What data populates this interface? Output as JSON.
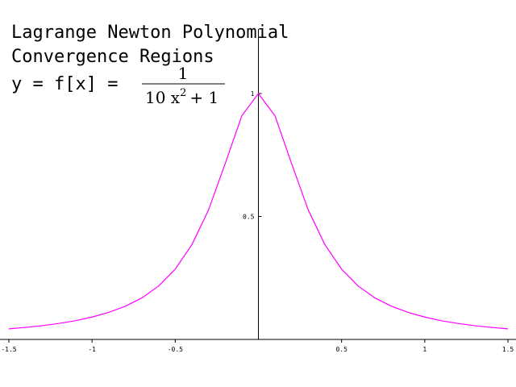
{
  "chart_data": {
    "type": "line",
    "title_lines": [
      "Lagrange Newton Polynomial",
      "Convergence Regions"
    ],
    "formula": {
      "lhs": "y = f[x] =",
      "numerator": "1",
      "denominator_base": "10 x",
      "denominator_exponent": "2",
      "denominator_tail": "+ 1"
    },
    "xlabel": "",
    "ylabel": "",
    "xlim": [
      -1.5,
      1.5
    ],
    "ylim": [
      0,
      1
    ],
    "grid": false,
    "legend": "none",
    "x_ticks": [
      {
        "value": -1.5,
        "label": "-1.5"
      },
      {
        "value": -1,
        "label": "-1"
      },
      {
        "value": -0.5,
        "label": "-0.5"
      },
      {
        "value": 0.5,
        "label": "0.5"
      },
      {
        "value": 1,
        "label": "1"
      },
      {
        "value": 1.5,
        "label": "1.5"
      }
    ],
    "y_ticks": [
      {
        "value": 0.5,
        "label": "0.5"
      },
      {
        "value": 1,
        "label": "1"
      }
    ],
    "series": [
      {
        "color": "#ff00ff",
        "x": [
          -1.5,
          -1.4,
          -1.3,
          -1.2,
          -1.1,
          -1.0,
          -0.9,
          -0.8,
          -0.7,
          -0.6,
          -0.5,
          -0.4,
          -0.3,
          -0.2,
          -0.1,
          0.0,
          0.1,
          0.2,
          0.3,
          0.4,
          0.5,
          0.6,
          0.7,
          0.8,
          0.9,
          1.0,
          1.1,
          1.2,
          1.3,
          1.4,
          1.5
        ],
        "y": [
          0.043,
          0.049,
          0.056,
          0.065,
          0.076,
          0.091,
          0.11,
          0.135,
          0.169,
          0.217,
          0.286,
          0.385,
          0.526,
          0.714,
          0.909,
          1.0,
          0.909,
          0.714,
          0.526,
          0.385,
          0.286,
          0.217,
          0.169,
          0.135,
          0.11,
          0.091,
          0.076,
          0.065,
          0.056,
          0.049,
          0.043
        ]
      }
    ]
  },
  "colors": {
    "axis": "#000000",
    "curve": "#ff00ff",
    "background": "#ffffff"
  }
}
